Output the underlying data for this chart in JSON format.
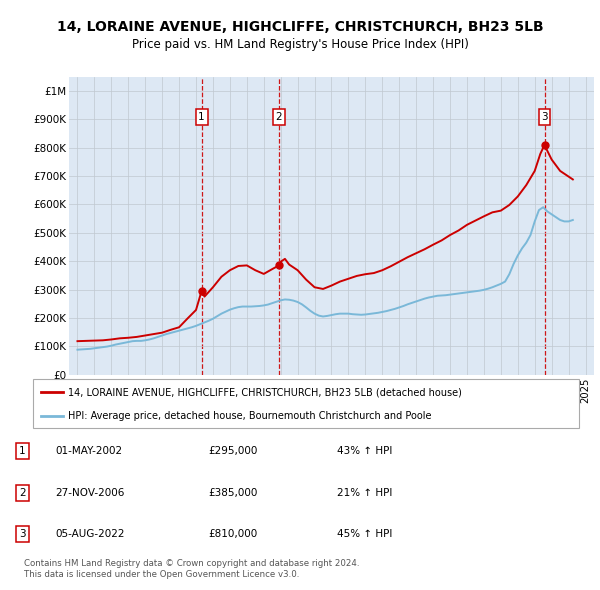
{
  "title": "14, LORAINE AVENUE, HIGHCLIFFE, CHRISTCHURCH, BH23 5LB",
  "subtitle": "Price paid vs. HM Land Registry's House Price Index (HPI)",
  "legend_line1": "14, LORAINE AVENUE, HIGHCLIFFE, CHRISTCHURCH, BH23 5LB (detached house)",
  "legend_line2": "HPI: Average price, detached house, Bournemouth Christchurch and Poole",
  "footer1": "Contains HM Land Registry data © Crown copyright and database right 2024.",
  "footer2": "This data is licensed under the Open Government Licence v3.0.",
  "transactions": [
    {
      "num": 1,
      "date": "01-MAY-2002",
      "price": 295000,
      "pct": "43%",
      "dir": "↑",
      "year": 2002.33
    },
    {
      "num": 2,
      "date": "27-NOV-2006",
      "price": 385000,
      "pct": "21%",
      "dir": "↑",
      "year": 2006.9
    },
    {
      "num": 3,
      "date": "05-AUG-2022",
      "price": 810000,
      "pct": "45%",
      "dir": "↑",
      "year": 2022.58
    }
  ],
  "hpi_color": "#7ab8d8",
  "price_color": "#cc0000",
  "vline_color": "#cc0000",
  "background_color": "#dde8f4",
  "plot_bg": "#ffffff",
  "ylim": [
    0,
    1050000
  ],
  "xlim_start": 1994.5,
  "xlim_end": 2025.5,
  "yticks": [
    0,
    100000,
    200000,
    300000,
    400000,
    500000,
    600000,
    700000,
    800000,
    900000,
    1000000
  ],
  "ytick_labels": [
    "£0",
    "£100K",
    "£200K",
    "£300K",
    "£400K",
    "£500K",
    "£600K",
    "£700K",
    "£800K",
    "£900K",
    "£1M"
  ],
  "hpi_years": [
    1995,
    1995.25,
    1995.5,
    1995.75,
    1996,
    1996.25,
    1996.5,
    1996.75,
    1997,
    1997.25,
    1997.5,
    1997.75,
    1998,
    1998.25,
    1998.5,
    1998.75,
    1999,
    1999.25,
    1999.5,
    1999.75,
    2000,
    2000.25,
    2000.5,
    2000.75,
    2001,
    2001.25,
    2001.5,
    2001.75,
    2002,
    2002.25,
    2002.5,
    2002.75,
    2003,
    2003.25,
    2003.5,
    2003.75,
    2004,
    2004.25,
    2004.5,
    2004.75,
    2005,
    2005.25,
    2005.5,
    2005.75,
    2006,
    2006.25,
    2006.5,
    2006.75,
    2007,
    2007.25,
    2007.5,
    2007.75,
    2008,
    2008.25,
    2008.5,
    2008.75,
    2009,
    2009.25,
    2009.5,
    2009.75,
    2010,
    2010.25,
    2010.5,
    2010.75,
    2011,
    2011.25,
    2011.5,
    2011.75,
    2012,
    2012.25,
    2012.5,
    2012.75,
    2013,
    2013.25,
    2013.5,
    2013.75,
    2014,
    2014.25,
    2014.5,
    2014.75,
    2015,
    2015.25,
    2015.5,
    2015.75,
    2016,
    2016.25,
    2016.5,
    2016.75,
    2017,
    2017.25,
    2017.5,
    2017.75,
    2018,
    2018.25,
    2018.5,
    2018.75,
    2019,
    2019.25,
    2019.5,
    2019.75,
    2020,
    2020.25,
    2020.5,
    2020.75,
    2021,
    2021.25,
    2021.5,
    2021.75,
    2022,
    2022.25,
    2022.5,
    2022.75,
    2023,
    2023.25,
    2023.5,
    2023.75,
    2024,
    2024.25
  ],
  "hpi_values": [
    88000,
    89000,
    90000,
    91000,
    93000,
    95000,
    97000,
    99000,
    102000,
    106000,
    109000,
    112000,
    115000,
    118000,
    119000,
    119000,
    121000,
    124000,
    128000,
    133000,
    138000,
    143000,
    147000,
    151000,
    155000,
    159000,
    163000,
    167000,
    172000,
    178000,
    184000,
    190000,
    197000,
    206000,
    215000,
    222000,
    229000,
    234000,
    238000,
    240000,
    240000,
    240000,
    241000,
    242000,
    244000,
    247000,
    252000,
    257000,
    262000,
    265000,
    264000,
    261000,
    256000,
    248000,
    237000,
    225000,
    215000,
    208000,
    205000,
    207000,
    210000,
    213000,
    215000,
    215000,
    215000,
    213000,
    212000,
    211000,
    212000,
    214000,
    216000,
    218000,
    221000,
    224000,
    228000,
    232000,
    237000,
    242000,
    248000,
    253000,
    258000,
    263000,
    268000,
    272000,
    275000,
    278000,
    279000,
    280000,
    282000,
    284000,
    286000,
    288000,
    290000,
    292000,
    294000,
    296000,
    299000,
    303000,
    308000,
    314000,
    320000,
    328000,
    354000,
    390000,
    420000,
    445000,
    465000,
    492000,
    540000,
    580000,
    590000,
    575000,
    565000,
    555000,
    545000,
    540000,
    540000,
    545000
  ],
  "price_years": [
    1995,
    1995.5,
    1996,
    1996.5,
    1997,
    1997.5,
    1998,
    1998.5,
    1999,
    1999.5,
    2000,
    2000.5,
    2001,
    2001.5,
    2002,
    2002.33,
    2002.5,
    2003,
    2003.5,
    2004,
    2004.5,
    2005,
    2005.5,
    2006,
    2006.5,
    2006.9,
    2007,
    2007.25,
    2007.5,
    2008,
    2008.5,
    2009,
    2009.5,
    2010,
    2010.5,
    2011,
    2011.5,
    2012,
    2012.5,
    2013,
    2013.5,
    2014,
    2014.5,
    2015,
    2015.5,
    2016,
    2016.5,
    2017,
    2017.5,
    2018,
    2018.5,
    2019,
    2019.5,
    2020,
    2020.5,
    2021,
    2021.5,
    2022,
    2022.33,
    2022.58,
    2022.75,
    2023,
    2023.5,
    2024,
    2024.25
  ],
  "price_values": [
    118000,
    119000,
    120000,
    121000,
    124000,
    128000,
    130000,
    133000,
    138000,
    143000,
    148000,
    158000,
    167000,
    198000,
    228000,
    295000,
    275000,
    308000,
    345000,
    368000,
    383000,
    385000,
    368000,
    355000,
    372000,
    385000,
    398000,
    408000,
    388000,
    368000,
    335000,
    308000,
    302000,
    314000,
    328000,
    338000,
    348000,
    354000,
    358000,
    368000,
    382000,
    398000,
    414000,
    428000,
    442000,
    458000,
    473000,
    492000,
    508000,
    528000,
    543000,
    558000,
    572000,
    578000,
    598000,
    628000,
    668000,
    718000,
    778000,
    810000,
    788000,
    758000,
    718000,
    698000,
    688000
  ]
}
